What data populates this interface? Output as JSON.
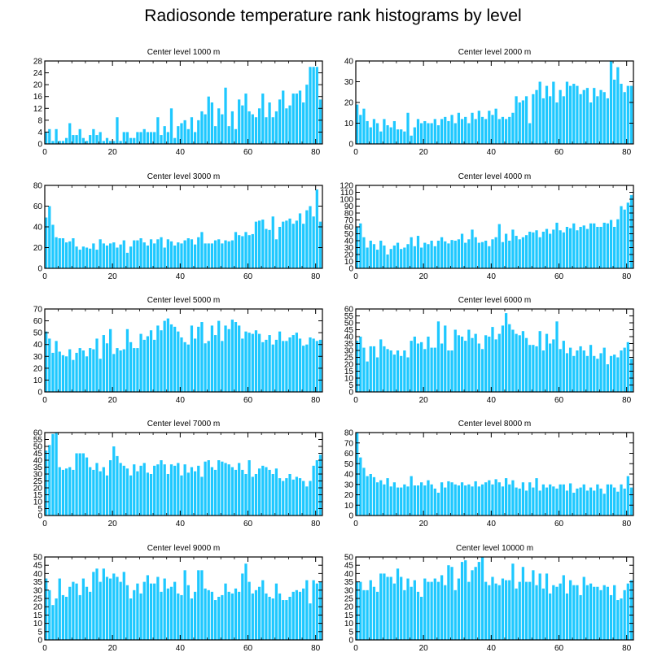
{
  "title": "Radiosonde temperature rank histograms by level",
  "bar_color": "#1ec8ff",
  "chart_data": [
    {
      "type": "bar",
      "title": "Center level 1000 m",
      "xlim": [
        0,
        82
      ],
      "ylim": [
        0,
        28
      ],
      "xticks": [
        0,
        20,
        40,
        60,
        80
      ],
      "yticks": [
        0,
        4,
        8,
        12,
        16,
        20,
        24,
        28
      ],
      "values": [
        4,
        5,
        1,
        5,
        1,
        1,
        2,
        7,
        3,
        3,
        5,
        2,
        1,
        3,
        5,
        3,
        4,
        1,
        2,
        1,
        1,
        9,
        1,
        4,
        4,
        2,
        2,
        4,
        4,
        5,
        4,
        4,
        4,
        9,
        3,
        6,
        4,
        12,
        2,
        6,
        7,
        8,
        5,
        9,
        4,
        8,
        11,
        10,
        16,
        14,
        6,
        12,
        10,
        19,
        6,
        11,
        5,
        15,
        13,
        17,
        11,
        10,
        9,
        12,
        17,
        9,
        14,
        9,
        11,
        15,
        18,
        12,
        13,
        17,
        17,
        18,
        14,
        20,
        26,
        26,
        26,
        15
      ]
    },
    {
      "type": "bar",
      "title": "Center level 2000 m",
      "xlim": [
        0,
        82
      ],
      "ylim": [
        0,
        40
      ],
      "xticks": [
        0,
        20,
        40,
        60,
        80
      ],
      "yticks": [
        0,
        10,
        20,
        30,
        40
      ],
      "values": [
        19,
        14,
        17,
        11,
        8,
        12,
        10,
        6,
        12,
        9,
        8,
        11,
        7,
        7,
        6,
        15,
        4,
        8,
        12,
        10,
        11,
        10,
        10,
        12,
        9,
        12,
        13,
        11,
        14,
        10,
        15,
        12,
        13,
        10,
        15,
        12,
        16,
        13,
        12,
        16,
        14,
        17,
        12,
        13,
        12,
        13,
        15,
        23,
        20,
        21,
        23,
        10,
        24,
        26,
        30,
        22,
        28,
        23,
        30,
        20,
        26,
        23,
        30,
        28,
        29,
        28,
        24,
        26,
        27,
        20,
        27,
        23,
        26,
        25,
        22,
        40,
        31,
        37,
        29,
        25,
        28,
        28
      ]
    },
    {
      "type": "bar",
      "title": "Center level 3000 m",
      "xlim": [
        0,
        82
      ],
      "ylim": [
        0,
        80
      ],
      "xticks": [
        0,
        20,
        40,
        60,
        80
      ],
      "yticks": [
        0,
        20,
        40,
        60,
        80
      ],
      "values": [
        49,
        60,
        42,
        30,
        29,
        29,
        25,
        26,
        29,
        21,
        18,
        21,
        20,
        19,
        24,
        18,
        28,
        24,
        22,
        24,
        25,
        20,
        23,
        27,
        15,
        21,
        27,
        27,
        29,
        25,
        22,
        28,
        24,
        28,
        30,
        20,
        28,
        26,
        22,
        25,
        24,
        27,
        29,
        28,
        23,
        30,
        35,
        24,
        24,
        24,
        27,
        28,
        24,
        27,
        26,
        27,
        35,
        32,
        31,
        35,
        32,
        33,
        45,
        46,
        47,
        38,
        37,
        50,
        28,
        40,
        45,
        46,
        48,
        43,
        46,
        53,
        43,
        56,
        60,
        50,
        76,
        45
      ]
    },
    {
      "type": "bar",
      "title": "Center level 4000 m",
      "xlim": [
        0,
        82
      ],
      "ylim": [
        0,
        120
      ],
      "xticks": [
        0,
        20,
        40,
        60,
        80
      ],
      "yticks": [
        0,
        10,
        20,
        30,
        40,
        50,
        60,
        70,
        80,
        90,
        100,
        110,
        120
      ],
      "values": [
        60,
        65,
        45,
        30,
        40,
        35,
        27,
        40,
        33,
        20,
        28,
        33,
        37,
        28,
        30,
        35,
        45,
        32,
        47,
        30,
        37,
        35,
        40,
        32,
        40,
        45,
        39,
        36,
        41,
        40,
        42,
        50,
        37,
        42,
        56,
        45,
        37,
        38,
        40,
        32,
        42,
        45,
        64,
        38,
        50,
        40,
        56,
        47,
        42,
        45,
        48,
        53,
        52,
        55,
        45,
        53,
        57,
        50,
        56,
        66,
        55,
        52,
        60,
        58,
        65,
        55,
        60,
        62,
        57,
        65,
        65,
        60,
        60,
        66,
        65,
        70,
        60,
        71,
        90,
        85,
        95,
        106
      ]
    },
    {
      "type": "bar",
      "title": "Center level 5000 m",
      "xlim": [
        0,
        82
      ],
      "ylim": [
        0,
        70
      ],
      "xticks": [
        0,
        20,
        40,
        60,
        80
      ],
      "yticks": [
        0,
        10,
        20,
        30,
        40,
        50,
        60,
        70
      ],
      "values": [
        51,
        45,
        33,
        43,
        34,
        31,
        30,
        36,
        27,
        33,
        37,
        35,
        30,
        37,
        36,
        45,
        28,
        48,
        41,
        53,
        32,
        37,
        35,
        36,
        53,
        42,
        37,
        37,
        49,
        44,
        47,
        52,
        44,
        56,
        52,
        60,
        62,
        57,
        55,
        51,
        46,
        42,
        40,
        56,
        45,
        55,
        59,
        41,
        43,
        56,
        48,
        60,
        43,
        56,
        53,
        61,
        59,
        56,
        45,
        51,
        50,
        49,
        52,
        49,
        42,
        44,
        48,
        40,
        44,
        51,
        43,
        43,
        46,
        48,
        50,
        45,
        39,
        40,
        46,
        45,
        43,
        44
      ]
    },
    {
      "type": "bar",
      "title": "Center level 6000 m",
      "xlim": [
        0,
        82
      ],
      "ylim": [
        0,
        60
      ],
      "xticks": [
        0,
        20,
        40,
        60,
        80
      ],
      "yticks": [
        0,
        5,
        10,
        15,
        20,
        25,
        30,
        35,
        40,
        45,
        50,
        55,
        60
      ],
      "values": [
        37,
        40,
        32,
        22,
        33,
        33,
        25,
        38,
        33,
        31,
        30,
        27,
        30,
        26,
        30,
        25,
        37,
        40,
        35,
        36,
        31,
        40,
        32,
        32,
        51,
        35,
        48,
        30,
        30,
        45,
        41,
        40,
        37,
        45,
        39,
        42,
        35,
        31,
        41,
        40,
        47,
        38,
        42,
        48,
        57,
        49,
        45,
        42,
        41,
        44,
        39,
        34,
        34,
        33,
        44,
        30,
        42,
        35,
        38,
        51,
        31,
        37,
        28,
        32,
        26,
        30,
        33,
        30,
        26,
        34,
        26,
        24,
        28,
        32,
        20,
        26,
        27,
        25,
        30,
        32,
        36,
        24
      ]
    },
    {
      "type": "bar",
      "title": "Center level 7000 m",
      "xlim": [
        0,
        82
      ],
      "ylim": [
        0,
        60
      ],
      "xticks": [
        0,
        20,
        40,
        60,
        80
      ],
      "yticks": [
        0,
        5,
        10,
        15,
        20,
        25,
        30,
        35,
        40,
        45,
        50,
        55,
        60
      ],
      "values": [
        47,
        51,
        59,
        60,
        35,
        33,
        34,
        35,
        33,
        45,
        45,
        45,
        42,
        35,
        33,
        38,
        32,
        35,
        29,
        40,
        50,
        43,
        38,
        36,
        34,
        29,
        37,
        32,
        36,
        38,
        31,
        30,
        36,
        37,
        40,
        37,
        30,
        37,
        36,
        38,
        29,
        37,
        31,
        35,
        32,
        36,
        28,
        39,
        40,
        35,
        33,
        40,
        39,
        38,
        37,
        35,
        33,
        38,
        33,
        30,
        40,
        28,
        30,
        34,
        36,
        35,
        33,
        30,
        34,
        27,
        25,
        27,
        30,
        26,
        28,
        27,
        25,
        21,
        25,
        36,
        40,
        44
      ]
    },
    {
      "type": "bar",
      "title": "Center level 8000 m",
      "xlim": [
        0,
        82
      ],
      "ylim": [
        0,
        80
      ],
      "xticks": [
        0,
        20,
        40,
        60,
        80
      ],
      "yticks": [
        0,
        10,
        20,
        30,
        40,
        50,
        60,
        70,
        80
      ],
      "values": [
        80,
        56,
        46,
        38,
        40,
        37,
        32,
        34,
        30,
        36,
        28,
        32,
        27,
        27,
        30,
        28,
        38,
        29,
        29,
        32,
        29,
        34,
        30,
        26,
        22,
        32,
        27,
        33,
        32,
        30,
        29,
        32,
        29,
        30,
        28,
        33,
        28,
        30,
        32,
        34,
        30,
        35,
        32,
        28,
        36,
        30,
        34,
        27,
        26,
        32,
        24,
        32,
        27,
        36,
        24,
        30,
        27,
        30,
        28,
        26,
        30,
        30,
        24,
        31,
        22,
        26,
        27,
        30,
        24,
        27,
        24,
        30,
        26,
        21,
        30,
        30,
        27,
        23,
        30,
        26,
        38,
        27
      ]
    },
    {
      "type": "bar",
      "title": "Center level 9000 m",
      "xlim": [
        0,
        82
      ],
      "ylim": [
        0,
        50
      ],
      "xticks": [
        0,
        20,
        40,
        60,
        80
      ],
      "yticks": [
        0,
        5,
        10,
        15,
        20,
        25,
        30,
        35,
        40,
        45,
        50
      ],
      "values": [
        37,
        30,
        21,
        25,
        37,
        27,
        26,
        32,
        35,
        34,
        27,
        37,
        32,
        29,
        41,
        43,
        35,
        43,
        38,
        37,
        40,
        38,
        35,
        41,
        33,
        25,
        30,
        34,
        28,
        35,
        39,
        34,
        34,
        38,
        29,
        37,
        31,
        32,
        35,
        28,
        27,
        42,
        33,
        25,
        29,
        42,
        42,
        31,
        30,
        29,
        24,
        26,
        27,
        34,
        29,
        28,
        31,
        29,
        40,
        46,
        35,
        28,
        30,
        32,
        36,
        28,
        26,
        25,
        34,
        28,
        24,
        24,
        26,
        29,
        30,
        29,
        31,
        36,
        22,
        36,
        34,
        35
      ]
    },
    {
      "type": "bar",
      "title": "Center level 10000 m",
      "xlim": [
        0,
        82
      ],
      "ylim": [
        0,
        50
      ],
      "xticks": [
        0,
        20,
        40,
        60,
        80
      ],
      "yticks": [
        0,
        5,
        10,
        15,
        20,
        25,
        30,
        35,
        40,
        45,
        50
      ],
      "values": [
        35,
        35,
        30,
        30,
        36,
        32,
        29,
        40,
        40,
        38,
        38,
        34,
        43,
        38,
        30,
        37,
        32,
        36,
        29,
        26,
        37,
        35,
        35,
        37,
        35,
        39,
        33,
        45,
        44,
        30,
        37,
        47,
        48,
        35,
        42,
        44,
        47,
        50,
        35,
        33,
        38,
        34,
        33,
        37,
        36,
        36,
        46,
        31,
        35,
        44,
        35,
        35,
        42,
        33,
        40,
        31,
        40,
        28,
        33,
        32,
        34,
        39,
        28,
        36,
        33,
        33,
        27,
        38,
        33,
        34,
        32,
        32,
        30,
        33,
        32,
        27,
        33,
        24,
        25,
        30,
        34,
        36
      ]
    }
  ]
}
